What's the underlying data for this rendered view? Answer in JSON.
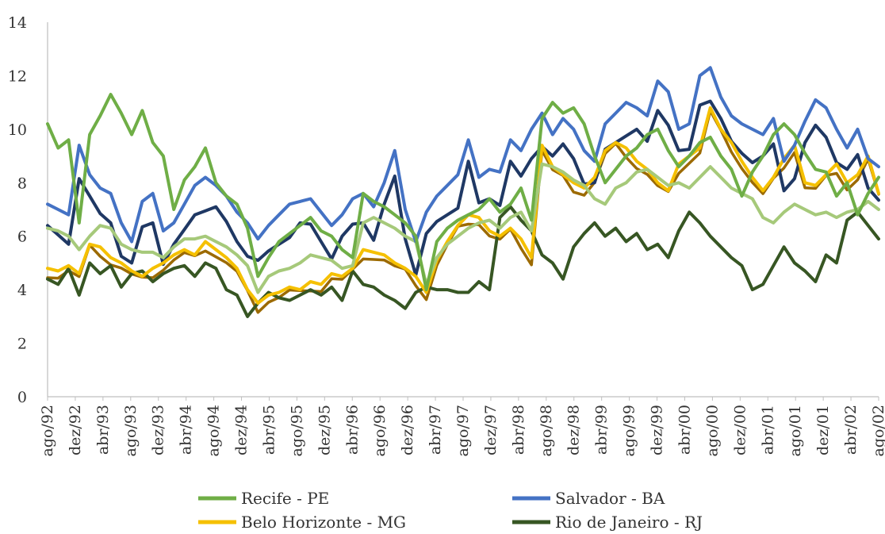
{
  "chart_data": {
    "type": "line",
    "title": "",
    "xlabel": "",
    "ylabel": "",
    "ylim": [
      0,
      14
    ],
    "yticks": [
      0,
      2,
      4,
      6,
      8,
      10,
      12,
      14
    ],
    "grid": false,
    "legend_position": "bottom",
    "x_tick_labels": [
      "ago/92",
      "dez/92",
      "abr/93",
      "ago/93",
      "dez/93",
      "abr/94",
      "ago/94",
      "dez/94",
      "abr/95",
      "ago/95",
      "dez/95",
      "abr/96",
      "ago/96",
      "dez/96",
      "abr/97",
      "ago/97",
      "dez/97",
      "abr/98",
      "ago/98",
      "dez/98",
      "abr/99",
      "ago/99",
      "dez/99",
      "abr/00",
      "ago/00",
      "dez/00",
      "abr/01",
      "ago/01",
      "dez/01",
      "abr/02",
      "ago/02"
    ],
    "series": [
      {
        "name": "Recife - PE",
        "color": "#6fae46",
        "values": [
          10.2,
          9.3,
          9.6,
          6.5,
          9.8,
          10.5,
          11.3,
          10.6,
          9.8,
          10.7,
          9.5,
          9.0,
          7.0,
          8.1,
          8.6,
          9.3,
          8.0,
          7.5,
          7.2,
          6.3,
          4.5,
          5.2,
          5.8,
          6.1,
          6.4,
          6.7,
          6.2,
          6.0,
          5.5,
          5.2,
          7.6,
          7.3,
          7.1,
          6.8,
          6.5,
          6.0,
          4.0,
          5.8,
          6.3,
          6.6,
          6.8,
          7.0,
          7.4,
          6.9,
          7.2,
          7.8,
          6.6,
          10.4,
          11.0,
          10.6,
          10.8,
          10.2,
          9.0,
          8.0,
          8.5,
          9.0,
          9.3,
          9.8,
          10.0,
          9.2,
          8.6,
          9.0,
          9.5,
          9.7,
          9.0,
          8.5,
          7.5,
          8.4,
          9.0,
          9.8,
          10.2,
          9.8,
          9.1,
          8.5,
          8.4,
          7.5,
          8.0,
          6.8,
          7.6,
          8.2
        ],
        "secondary": [
          6.3,
          6.2,
          6.0,
          5.5,
          6.0,
          6.4,
          6.3,
          5.7,
          5.5,
          5.4,
          5.4,
          5.2,
          5.6,
          5.9,
          5.9,
          6.0,
          5.8,
          5.6,
          5.3,
          4.9,
          3.9,
          4.5,
          4.7,
          4.8,
          5.0,
          5.3,
          5.2,
          5.1,
          4.8,
          4.9,
          6.5,
          6.7,
          6.5,
          6.3,
          6.0,
          5.8,
          4.2,
          5.2,
          5.7,
          6.0,
          6.3,
          6.5,
          6.6,
          6.3,
          6.7,
          6.9,
          6.2,
          8.7,
          8.6,
          8.4,
          8.1,
          7.9,
          7.4,
          7.2,
          7.8,
          8.0,
          8.4,
          8.5,
          8.2,
          7.9,
          8.0,
          7.8,
          8.2,
          8.6,
          8.2,
          7.8,
          7.6,
          7.4,
          6.7,
          6.5,
          6.9,
          7.2,
          7.0,
          6.8,
          6.9,
          6.7,
          6.9,
          7.0,
          7.3,
          7.0
        ]
      },
      {
        "name": "Salvador - BA",
        "color": "#4472c4",
        "values": [
          7.2,
          7.0,
          6.8,
          9.4,
          8.3,
          7.8,
          7.6,
          6.5,
          5.8,
          7.3,
          7.6,
          6.2,
          6.5,
          7.2,
          7.9,
          8.2,
          7.9,
          7.5,
          6.9,
          6.5,
          5.9,
          6.4,
          6.8,
          7.2,
          7.3,
          7.4,
          6.9,
          6.4,
          6.8,
          7.4,
          7.6,
          7.1,
          8.0,
          9.2,
          7.0,
          5.8,
          6.9,
          7.5,
          7.9,
          8.3,
          9.6,
          8.2,
          8.5,
          8.4,
          9.6,
          9.2,
          10.0,
          10.6,
          9.8,
          10.4,
          10.0,
          9.2,
          8.8,
          10.2,
          10.6,
          11.0,
          10.8,
          10.5,
          11.8,
          11.4,
          10.0,
          10.2,
          12.0,
          12.3,
          11.2,
          10.5,
          10.2,
          10.0,
          9.8,
          10.4,
          8.8,
          9.4,
          10.3,
          11.1,
          10.8,
          10.0,
          9.3,
          10.0,
          8.9,
          8.6
        ]
      },
      {
        "name": "Belo Horizonte - MG",
        "color": "#f5c000",
        "values": [
          4.8,
          4.7,
          4.9,
          4.6,
          5.7,
          5.6,
          5.2,
          5.0,
          4.7,
          4.5,
          4.8,
          5.0,
          5.3,
          5.5,
          5.3,
          5.8,
          5.5,
          5.2,
          4.8,
          4.0,
          3.5,
          3.8,
          3.9,
          4.1,
          4.0,
          4.3,
          4.2,
          4.6,
          4.5,
          4.8,
          5.5,
          5.4,
          5.3,
          5.0,
          4.8,
          4.5,
          3.9,
          5.1,
          5.8,
          6.4,
          6.8,
          6.7,
          6.2,
          6.0,
          6.3,
          5.9,
          5.2,
          9.4,
          8.6,
          8.3,
          8.0,
          7.8,
          8.2,
          9.2,
          9.5,
          9.3,
          8.8,
          8.5,
          8.0,
          7.7,
          8.7,
          9.0,
          9.3,
          10.8,
          10.0,
          9.5,
          8.8,
          8.2,
          7.7,
          8.2,
          8.9,
          9.4,
          8.0,
          7.9,
          8.3,
          8.7,
          8.0,
          8.3,
          9.0,
          7.6
        ]
      },
      {
        "name": "Rio de Janeiro - RJ",
        "color": "#375623",
        "values": [
          4.4,
          4.2,
          4.8,
          3.8,
          5.0,
          4.6,
          4.9,
          4.1,
          4.6,
          4.7,
          4.3,
          4.6,
          4.8,
          4.9,
          4.5,
          5.0,
          4.8,
          4.0,
          3.8,
          3.0,
          3.5,
          3.9,
          3.7,
          3.6,
          3.8,
          4.0,
          3.8,
          4.1,
          3.6,
          4.7,
          4.2,
          4.1,
          3.8,
          3.6,
          3.3,
          3.9,
          4.1,
          4.0,
          4.0,
          3.9,
          3.9,
          4.3,
          4.0,
          6.7,
          7.1,
          6.6,
          6.2,
          5.3,
          5.0,
          4.4,
          5.6,
          6.1,
          6.5,
          6.0,
          6.3,
          5.8,
          6.1,
          5.5,
          5.7,
          5.2,
          6.2,
          6.9,
          6.5,
          6.0,
          5.6,
          5.2,
          4.9,
          4.0,
          4.2,
          4.9,
          5.6,
          5.0,
          4.7,
          4.3,
          5.3,
          5.0,
          6.6,
          6.9,
          6.4,
          5.9
        ]
      }
    ]
  },
  "legend": {
    "items": [
      {
        "label": "Recife - PE",
        "color": "#6fae46"
      },
      {
        "label": "Salvador - BA",
        "color": "#4472c4"
      },
      {
        "label": "Belo Horizonte - MG",
        "color": "#f5c000"
      },
      {
        "label": "Rio de Janeiro - RJ",
        "color": "#375623"
      }
    ]
  },
  "extra_series_colors": [
    "#a6c97a",
    "#1f3864",
    "#9c6a00"
  ]
}
